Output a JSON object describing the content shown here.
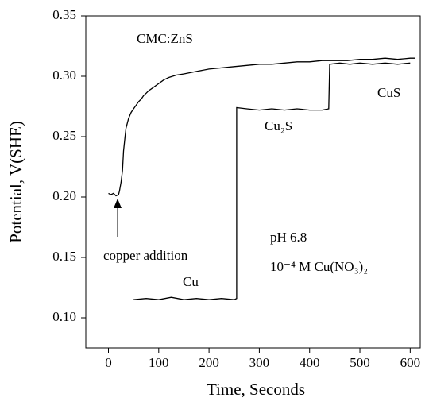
{
  "chart_data": {
    "type": "line",
    "xlabel": "Time, Seconds",
    "ylabel": "Potential, V(SHE)",
    "xlim": [
      -45,
      620
    ],
    "ylim": [
      0.075,
      0.35
    ],
    "xticks": [
      0,
      100,
      200,
      300,
      400,
      500,
      600
    ],
    "yticks": [
      {
        "value": 0.1,
        "label": "0.10"
      },
      0.15,
      {
        "value": 0.2,
        "label": "0.20"
      },
      0.25,
      {
        "value": 0.3,
        "label": "0.30"
      },
      0.35
    ],
    "series": [
      {
        "color": "#000000",
        "x": [
          0,
          5,
          10,
          15,
          20,
          22,
          25,
          28,
          30,
          33,
          35,
          40,
          45,
          50,
          55,
          60,
          65,
          70,
          75,
          80,
          90,
          100,
          110,
          120,
          135,
          150,
          175,
          200,
          225,
          250,
          275,
          300,
          325,
          350,
          375,
          400,
          425,
          450,
          475,
          500,
          525,
          550,
          575,
          600,
          610
        ],
        "values": [
          0.203,
          0.202,
          0.203,
          0.201,
          0.202,
          0.205,
          0.212,
          0.222,
          0.238,
          0.25,
          0.257,
          0.265,
          0.27,
          0.273,
          0.276,
          0.279,
          0.281,
          0.284,
          0.286,
          0.288,
          0.291,
          0.294,
          0.297,
          0.299,
          0.301,
          0.302,
          0.304,
          0.306,
          0.307,
          0.308,
          0.309,
          0.31,
          0.31,
          0.311,
          0.312,
          0.312,
          0.313,
          0.313,
          0.313,
          0.314,
          0.314,
          0.315,
          0.314,
          0.315,
          0.315
        ]
      },
      {
        "color": "#000000",
        "x": [
          50,
          75,
          100,
          125,
          150,
          175,
          200,
          225,
          250,
          255,
          255,
          275,
          300,
          325,
          350,
          375,
          400,
          425,
          438,
          440,
          460,
          480,
          500,
          525,
          550,
          575,
          600
        ],
        "values": [
          0.115,
          0.116,
          0.115,
          0.117,
          0.115,
          0.116,
          0.115,
          0.116,
          0.115,
          0.116,
          0.274,
          0.273,
          0.272,
          0.273,
          0.272,
          0.273,
          0.272,
          0.272,
          0.273,
          0.31,
          0.311,
          0.31,
          0.311,
          0.31,
          0.311,
          0.31,
          0.311
        ]
      }
    ],
    "annotations": [
      "CMC:ZnS",
      "CuS",
      "Cu₂S",
      "Cu",
      "copper addition",
      "pH 6.8",
      "10⁻⁴ M Cu(NO₃)₂"
    ]
  }
}
